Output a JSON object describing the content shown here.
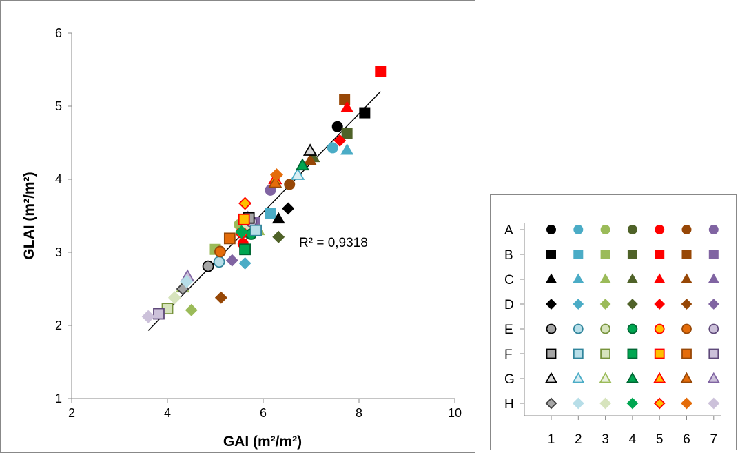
{
  "chart_data": {
    "type": "scatter",
    "xlabel": "GAI (m²/m²)",
    "ylabel": "GLAI (m²/m²)",
    "xlim": [
      2,
      10
    ],
    "ylim": [
      1,
      6
    ],
    "xticks": [
      "2",
      "4",
      "6",
      "8",
      "10"
    ],
    "yticks": [
      "1",
      "2",
      "3",
      "4",
      "5",
      "6"
    ],
    "grid": false,
    "trendline": {
      "type": "linear",
      "x": [
        3.6,
        8.45
      ],
      "y": [
        1.93,
        5.2
      ]
    },
    "r_squared_label": "R² = 0,9318",
    "point_style": "shape per row letter (circle, square, triangle, diamond, outlined circle, outlined square, outlined triangle, outlined diamond); color per column number",
    "points": [
      {
        "id": "A1",
        "x": 7.55,
        "y": 4.72
      },
      {
        "id": "A2",
        "x": 7.45,
        "y": 4.43
      },
      {
        "id": "A3",
        "x": 5.5,
        "y": 3.38
      },
      {
        "id": "A4",
        "x": 5.72,
        "y": 3.25
      },
      {
        "id": "A5",
        "x": 5.58,
        "y": 3.12
      },
      {
        "id": "A6",
        "x": 6.55,
        "y": 3.93
      },
      {
        "id": "A7",
        "x": 6.15,
        "y": 3.85
      },
      {
        "id": "B1",
        "x": 8.12,
        "y": 4.91
      },
      {
        "id": "B2",
        "x": 6.15,
        "y": 3.53
      },
      {
        "id": "B3",
        "x": 5.0,
        "y": 3.04
      },
      {
        "id": "B4",
        "x": 7.75,
        "y": 4.63
      },
      {
        "id": "B5",
        "x": 8.45,
        "y": 5.48
      },
      {
        "id": "B6",
        "x": 7.7,
        "y": 5.09
      },
      {
        "id": "B7",
        "x": 5.82,
        "y": 3.41
      },
      {
        "id": "C1",
        "x": 6.32,
        "y": 3.46
      },
      {
        "id": "C2",
        "x": 7.75,
        "y": 4.4
      },
      {
        "id": "C3",
        "x": 5.9,
        "y": 3.3
      },
      {
        "id": "C4",
        "x": 7.05,
        "y": 4.3
      },
      {
        "id": "C5",
        "x": 7.75,
        "y": 4.98
      },
      {
        "id": "C6",
        "x": 6.98,
        "y": 4.26
      },
      {
        "id": "C7",
        "x": 5.68,
        "y": 3.48
      },
      {
        "id": "D1",
        "x": 6.52,
        "y": 3.6
      },
      {
        "id": "D2",
        "x": 5.62,
        "y": 2.85
      },
      {
        "id": "D3",
        "x": 4.5,
        "y": 2.21
      },
      {
        "id": "D4",
        "x": 6.32,
        "y": 3.21
      },
      {
        "id": "D5",
        "x": 7.6,
        "y": 4.53
      },
      {
        "id": "D6",
        "x": 5.12,
        "y": 2.38
      },
      {
        "id": "D7",
        "x": 5.35,
        "y": 2.89
      },
      {
        "id": "E1",
        "x": 4.85,
        "y": 2.81
      },
      {
        "id": "E2",
        "x": 5.08,
        "y": 2.87
      },
      {
        "id": "E3",
        "x": 5.65,
        "y": 3.35
      },
      {
        "id": "E4",
        "x": 5.75,
        "y": 3.25
      },
      {
        "id": "E5",
        "x": 5.55,
        "y": 3.27
      },
      {
        "id": "E6",
        "x": 5.1,
        "y": 3.01
      },
      {
        "id": "E7",
        "x": 5.75,
        "y": 3.42
      },
      {
        "id": "F1",
        "x": 5.7,
        "y": 3.47
      },
      {
        "id": "F2",
        "x": 5.85,
        "y": 3.3
      },
      {
        "id": "F3",
        "x": 4.0,
        "y": 2.23
      },
      {
        "id": "F4",
        "x": 5.62,
        "y": 3.04
      },
      {
        "id": "F5",
        "x": 5.6,
        "y": 3.45
      },
      {
        "id": "F6",
        "x": 5.3,
        "y": 3.19
      },
      {
        "id": "F7",
        "x": 3.82,
        "y": 2.16
      },
      {
        "id": "G1",
        "x": 6.98,
        "y": 4.39
      },
      {
        "id": "G2",
        "x": 6.72,
        "y": 4.06
      },
      {
        "id": "G3",
        "x": 4.32,
        "y": 2.52
      },
      {
        "id": "G4",
        "x": 6.82,
        "y": 4.19
      },
      {
        "id": "G5",
        "x": 6.25,
        "y": 4.0
      },
      {
        "id": "G6",
        "x": 6.25,
        "y": 3.95
      },
      {
        "id": "G7",
        "x": 4.42,
        "y": 2.67
      },
      {
        "id": "H1",
        "x": 4.32,
        "y": 2.5
      },
      {
        "id": "H2",
        "x": 4.4,
        "y": 2.6
      },
      {
        "id": "H3",
        "x": 4.15,
        "y": 2.38
      },
      {
        "id": "H4",
        "x": 5.55,
        "y": 3.28
      },
      {
        "id": "H5",
        "x": 5.62,
        "y": 3.67
      },
      {
        "id": "H6",
        "x": 6.28,
        "y": 4.06
      },
      {
        "id": "H7",
        "x": 3.6,
        "y": 2.12
      }
    ]
  },
  "legend": {
    "rows": [
      "A",
      "B",
      "C",
      "D",
      "E",
      "F",
      "G",
      "H"
    ],
    "columns": [
      "1",
      "2",
      "3",
      "4",
      "5",
      "6",
      "7"
    ],
    "row_shapes": [
      "circle",
      "square",
      "triangle",
      "diamond",
      "circle",
      "square",
      "triangle",
      "diamond"
    ],
    "row_outlined": [
      false,
      false,
      false,
      false,
      true,
      true,
      true,
      true
    ],
    "colors": {
      "filled": [
        "#000000",
        "#4BACC6",
        "#9BBB59",
        "#4F6228",
        "#FF0000",
        "#974706",
        "#8064A2"
      ],
      "e_fill": [
        "#A6A6A6",
        "#B7DEE8",
        "#D7E4BD",
        "#00A651",
        "#FFC000",
        "#E46C0A",
        "#CCC1DA"
      ],
      "e_stroke": [
        "#000000",
        "#31859C",
        "#77933C",
        "#006633",
        "#FF0000",
        "#984807",
        "#5F497A"
      ],
      "f_fill": [
        "#A6A6A6",
        "#B7DEE8",
        "#D7E4BD",
        "#00A651",
        "#FFC000",
        "#E46C0A",
        "#CCC1DA"
      ],
      "f_stroke": [
        "#000000",
        "#31859C",
        "#77933C",
        "#006633",
        "#FF0000",
        "#984807",
        "#5F497A"
      ],
      "g_fill": [
        "#D9D9D9",
        "#DAEEF3",
        "#EBF1DE",
        "#00A651",
        "#FFC000",
        "#E46C0A",
        "#CCC1DA"
      ],
      "g_stroke": [
        "#000000",
        "#4BACC6",
        "#9BBB59",
        "#006633",
        "#FF0000",
        "#984807",
        "#8064A2"
      ],
      "h_fill": [
        "#A6A6A6",
        "#B7DEE8",
        "#D7E4BD",
        "#00A651",
        "#FFC000",
        "#E46C0A",
        "#CCC1DA"
      ],
      "h_stroke": [
        "#404040",
        "#B7DEE8",
        "#D7E4BD",
        "#00A651",
        "#FF0000",
        "#E46C0A",
        "#CCC1DA"
      ]
    }
  }
}
